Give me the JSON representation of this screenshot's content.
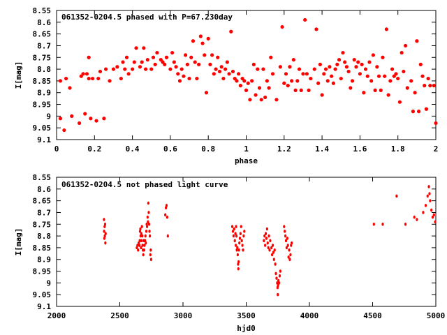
{
  "chart_data": [
    {
      "type": "scatter",
      "title": "061352-0204.5 phased with P=67.230day",
      "xlabel": "phase",
      "ylabel": "I[mag]",
      "xlim": [
        0,
        2
      ],
      "ylim": [
        8.55,
        9.1
      ],
      "y_inverted": true,
      "x_ticks": [
        "0",
        "0.2",
        "0.4",
        "0.6",
        "0.8",
        "1",
        "1.2",
        "1.4",
        "1.6",
        "1.8",
        "2"
      ],
      "y_ticks": [
        "8.55",
        "8.6",
        "8.65",
        "8.7",
        "8.75",
        "8.8",
        "8.85",
        "8.9",
        "8.95",
        "9",
        "9.05",
        "9.1"
      ],
      "grid": false,
      "marker_color": "#ff0000",
      "points": [
        [
          0.02,
          8.85
        ],
        [
          0.02,
          9.01
        ],
        [
          0.04,
          9.06
        ],
        [
          0.05,
          8.84
        ],
        [
          0.07,
          8.88
        ],
        [
          0.08,
          9.0
        ],
        [
          0.12,
          9.03
        ],
        [
          0.13,
          8.83
        ],
        [
          0.14,
          8.82
        ],
        [
          0.15,
          8.99
        ],
        [
          0.16,
          8.82
        ],
        [
          0.17,
          8.75
        ],
        [
          0.17,
          8.84
        ],
        [
          0.18,
          9.01
        ],
        [
          0.19,
          8.84
        ],
        [
          0.21,
          9.02
        ],
        [
          0.22,
          8.84
        ],
        [
          0.23,
          8.81
        ],
        [
          0.25,
          9.01
        ],
        [
          0.26,
          8.8
        ],
        [
          0.28,
          8.85
        ],
        [
          0.3,
          8.8
        ],
        [
          0.32,
          8.79
        ],
        [
          0.34,
          8.84
        ],
        [
          0.35,
          8.77
        ],
        [
          0.36,
          8.8
        ],
        [
          0.37,
          8.75
        ],
        [
          0.38,
          8.82
        ],
        [
          0.4,
          8.8
        ],
        [
          0.41,
          8.77
        ],
        [
          0.42,
          8.71
        ],
        [
          0.44,
          8.79
        ],
        [
          0.45,
          8.77
        ],
        [
          0.46,
          8.71
        ],
        [
          0.47,
          8.8
        ],
        [
          0.48,
          8.76
        ],
        [
          0.5,
          8.8
        ],
        [
          0.51,
          8.75
        ],
        [
          0.52,
          8.78
        ],
        [
          0.53,
          8.73
        ],
        [
          0.55,
          8.76
        ],
        [
          0.56,
          8.77
        ],
        [
          0.57,
          8.78
        ],
        [
          0.58,
          8.75
        ],
        [
          0.6,
          8.8
        ],
        [
          0.61,
          8.73
        ],
        [
          0.62,
          8.77
        ],
        [
          0.63,
          8.79
        ],
        [
          0.64,
          8.82
        ],
        [
          0.65,
          8.85
        ],
        [
          0.66,
          8.8
        ],
        [
          0.67,
          8.83
        ],
        [
          0.68,
          8.74
        ],
        [
          0.69,
          8.78
        ],
        [
          0.7,
          8.84
        ],
        [
          0.71,
          8.75
        ],
        [
          0.72,
          8.68
        ],
        [
          0.73,
          8.77
        ],
        [
          0.74,
          8.84
        ],
        [
          0.75,
          8.78
        ],
        [
          0.76,
          8.66
        ],
        [
          0.77,
          8.69
        ],
        [
          0.78,
          8.74
        ],
        [
          0.79,
          8.9
        ],
        [
          0.8,
          8.67
        ],
        [
          0.81,
          8.78
        ],
        [
          0.82,
          8.74
        ],
        [
          0.83,
          8.82
        ],
        [
          0.84,
          8.8
        ],
        [
          0.85,
          8.75
        ],
        [
          0.86,
          8.81
        ],
        [
          0.87,
          8.79
        ],
        [
          0.88,
          8.84
        ],
        [
          0.89,
          8.8
        ],
        [
          0.9,
          8.77
        ],
        [
          0.91,
          8.82
        ],
        [
          0.92,
          8.64
        ],
        [
          0.93,
          8.81
        ],
        [
          0.94,
          8.84
        ],
        [
          0.95,
          8.85
        ],
        [
          0.96,
          8.82
        ],
        [
          0.97,
          8.87
        ],
        [
          0.98,
          8.84
        ],
        [
          0.99,
          8.85
        ],
        [
          1.0,
          8.89
        ],
        [
          1.01,
          8.86
        ],
        [
          1.02,
          8.93
        ],
        [
          1.03,
          8.85
        ],
        [
          1.04,
          8.78
        ],
        [
          1.05,
          8.91
        ],
        [
          1.06,
          8.8
        ],
        [
          1.07,
          8.88
        ],
        [
          1.08,
          8.93
        ],
        [
          1.09,
          8.8
        ],
        [
          1.1,
          8.92
        ],
        [
          1.11,
          8.85
        ],
        [
          1.12,
          8.88
        ],
        [
          1.13,
          8.75
        ],
        [
          1.14,
          8.82
        ],
        [
          1.16,
          8.93
        ],
        [
          1.18,
          8.79
        ],
        [
          1.19,
          8.62
        ],
        [
          1.2,
          8.86
        ],
        [
          1.21,
          8.82
        ],
        [
          1.22,
          8.87
        ],
        [
          1.23,
          8.79
        ],
        [
          1.24,
          8.85
        ],
        [
          1.25,
          8.76
        ],
        [
          1.26,
          8.89
        ],
        [
          1.27,
          8.85
        ],
        [
          1.28,
          8.8
        ],
        [
          1.29,
          8.89
        ],
        [
          1.3,
          8.82
        ],
        [
          1.31,
          8.59
        ],
        [
          1.32,
          8.82
        ],
        [
          1.33,
          8.89
        ],
        [
          1.34,
          8.84
        ],
        [
          1.36,
          8.8
        ],
        [
          1.37,
          8.63
        ],
        [
          1.38,
          8.86
        ],
        [
          1.39,
          8.78
        ],
        [
          1.4,
          8.91
        ],
        [
          1.41,
          8.82
        ],
        [
          1.42,
          8.8
        ],
        [
          1.43,
          8.85
        ],
        [
          1.44,
          8.79
        ],
        [
          1.45,
          8.83
        ],
        [
          1.46,
          8.86
        ],
        [
          1.47,
          8.8
        ],
        [
          1.48,
          8.78
        ],
        [
          1.49,
          8.76
        ],
        [
          1.5,
          8.84
        ],
        [
          1.51,
          8.73
        ],
        [
          1.52,
          8.77
        ],
        [
          1.53,
          8.79
        ],
        [
          1.54,
          8.81
        ],
        [
          1.55,
          8.88
        ],
        [
          1.56,
          8.85
        ],
        [
          1.57,
          8.76
        ],
        [
          1.58,
          8.79
        ],
        [
          1.59,
          8.77
        ],
        [
          1.6,
          8.82
        ],
        [
          1.61,
          8.78
        ],
        [
          1.62,
          8.9
        ],
        [
          1.63,
          8.8
        ],
        [
          1.64,
          8.83
        ],
        [
          1.65,
          8.77
        ],
        [
          1.66,
          8.85
        ],
        [
          1.67,
          8.74
        ],
        [
          1.68,
          8.89
        ],
        [
          1.69,
          8.79
        ],
        [
          1.7,
          8.83
        ],
        [
          1.71,
          8.89
        ],
        [
          1.72,
          8.75
        ],
        [
          1.73,
          8.83
        ],
        [
          1.74,
          8.63
        ],
        [
          1.75,
          8.91
        ],
        [
          1.76,
          8.85
        ],
        [
          1.77,
          8.8
        ],
        [
          1.78,
          8.83
        ],
        [
          1.79,
          8.82
        ],
        [
          1.8,
          8.84
        ],
        [
          1.81,
          8.94
        ],
        [
          1.82,
          8.73
        ],
        [
          1.83,
          8.81
        ],
        [
          1.84,
          8.7
        ],
        [
          1.85,
          8.88
        ],
        [
          1.87,
          8.85
        ],
        [
          1.88,
          8.98
        ],
        [
          1.89,
          8.9
        ],
        [
          1.9,
          8.68
        ],
        [
          1.91,
          8.98
        ],
        [
          1.92,
          8.78
        ],
        [
          1.93,
          8.83
        ],
        [
          1.94,
          8.87
        ],
        [
          1.95,
          8.97
        ],
        [
          1.96,
          8.84
        ],
        [
          1.97,
          8.87
        ],
        [
          1.99,
          8.87
        ],
        [
          2.0,
          9.03
        ]
      ]
    },
    {
      "type": "scatter",
      "title": "061352-0204.5 not phased light curve",
      "xlabel": "hjd0",
      "ylabel": "I[mag]",
      "xlim": [
        2000,
        5000
      ],
      "ylim": [
        8.55,
        9.1
      ],
      "y_inverted": true,
      "x_ticks": [
        "2000",
        "2500",
        "3000",
        "3500",
        "4000",
        "4500",
        "5000"
      ],
      "y_ticks": [
        "8.55",
        "8.6",
        "8.65",
        "8.7",
        "8.75",
        "8.8",
        "8.85",
        "8.9",
        "8.95",
        "9",
        "9.05",
        "9.1"
      ],
      "grid": false,
      "marker_color": "#ff0000",
      "points": [
        [
          2375,
          8.73
        ],
        [
          2376,
          8.78
        ],
        [
          2378,
          8.81
        ],
        [
          2380,
          8.76
        ],
        [
          2382,
          8.8
        ],
        [
          2384,
          8.75
        ],
        [
          2386,
          8.83
        ],
        [
          2388,
          8.79
        ],
        [
          2635,
          8.85
        ],
        [
          2640,
          8.84
        ],
        [
          2645,
          8.86
        ],
        [
          2650,
          8.83
        ],
        [
          2655,
          8.84
        ],
        [
          2658,
          8.82
        ],
        [
          2660,
          8.78
        ],
        [
          2663,
          8.77
        ],
        [
          2665,
          8.8
        ],
        [
          2668,
          8.85
        ],
        [
          2670,
          8.79
        ],
        [
          2672,
          8.82
        ],
        [
          2675,
          8.76
        ],
        [
          2678,
          8.8
        ],
        [
          2680,
          8.84
        ],
        [
          2683,
          8.86
        ],
        [
          2686,
          8.88
        ],
        [
          2690,
          8.82
        ],
        [
          2693,
          8.86
        ],
        [
          2696,
          8.84
        ],
        [
          2700,
          8.82
        ],
        [
          2703,
          8.8
        ],
        [
          2706,
          8.83
        ],
        [
          2710,
          8.78
        ],
        [
          2713,
          8.75
        ],
        [
          2716,
          8.76
        ],
        [
          2720,
          8.72
        ],
        [
          2723,
          8.74
        ],
        [
          2726,
          8.66
        ],
        [
          2729,
          8.7
        ],
        [
          2732,
          8.75
        ],
        [
          2735,
          8.78
        ],
        [
          2738,
          8.8
        ],
        [
          2742,
          8.88
        ],
        [
          2745,
          8.86
        ],
        [
          2748,
          8.9
        ],
        [
          2860,
          8.71
        ],
        [
          2865,
          8.68
        ],
        [
          2870,
          8.67
        ],
        [
          2875,
          8.72
        ],
        [
          2880,
          8.8
        ],
        [
          3390,
          8.76
        ],
        [
          3395,
          8.78
        ],
        [
          3400,
          8.8
        ],
        [
          3405,
          8.77
        ],
        [
          3410,
          8.82
        ],
        [
          3415,
          8.79
        ],
        [
          3418,
          8.84
        ],
        [
          3420,
          8.76
        ],
        [
          3423,
          8.8
        ],
        [
          3426,
          8.86
        ],
        [
          3430,
          8.85
        ],
        [
          3433,
          8.88
        ],
        [
          3436,
          8.92
        ],
        [
          3438,
          8.94
        ],
        [
          3440,
          8.91
        ],
        [
          3443,
          8.86
        ],
        [
          3446,
          8.83
        ],
        [
          3450,
          8.81
        ],
        [
          3455,
          8.79
        ],
        [
          3460,
          8.76
        ],
        [
          3465,
          8.82
        ],
        [
          3470,
          8.84
        ],
        [
          3475,
          8.86
        ],
        [
          3480,
          8.8
        ],
        [
          3485,
          8.78
        ],
        [
          3640,
          8.82
        ],
        [
          3645,
          8.8
        ],
        [
          3650,
          8.84
        ],
        [
          3655,
          8.79
        ],
        [
          3660,
          8.81
        ],
        [
          3665,
          8.77
        ],
        [
          3670,
          8.83
        ],
        [
          3675,
          8.85
        ],
        [
          3680,
          8.8
        ],
        [
          3685,
          8.86
        ],
        [
          3690,
          8.82
        ],
        [
          3700,
          8.85
        ],
        [
          3705,
          8.88
        ],
        [
          3710,
          8.84
        ],
        [
          3715,
          8.87
        ],
        [
          3720,
          8.9
        ],
        [
          3725,
          8.86
        ],
        [
          3730,
          8.92
        ],
        [
          3735,
          8.96
        ],
        [
          3740,
          8.98
        ],
        [
          3745,
          9.0
        ],
        [
          3748,
          9.02
        ],
        [
          3750,
          9.05
        ],
        [
          3752,
          9.01
        ],
        [
          3755,
          8.99
        ],
        [
          3760,
          9.0
        ],
        [
          3765,
          8.97
        ],
        [
          3770,
          8.95
        ],
        [
          3800,
          8.76
        ],
        [
          3805,
          8.78
        ],
        [
          3810,
          8.8
        ],
        [
          3815,
          8.82
        ],
        [
          3820,
          8.85
        ],
        [
          3825,
          8.81
        ],
        [
          3830,
          8.84
        ],
        [
          3835,
          8.89
        ],
        [
          3840,
          8.86
        ],
        [
          3845,
          8.9
        ],
        [
          3850,
          8.88
        ],
        [
          3855,
          8.84
        ],
        [
          3860,
          8.83
        ],
        [
          4510,
          8.75
        ],
        [
          4580,
          8.75
        ],
        [
          4690,
          8.63
        ],
        [
          4760,
          8.75
        ],
        [
          4830,
          8.72
        ],
        [
          4850,
          8.73
        ],
        [
          4900,
          8.7
        ],
        [
          4920,
          8.67
        ],
        [
          4935,
          8.63
        ],
        [
          4945,
          8.59
        ],
        [
          4950,
          8.62
        ],
        [
          4955,
          8.65
        ],
        [
          4965,
          8.69
        ],
        [
          4975,
          8.72
        ],
        [
          4985,
          8.71
        ],
        [
          4995,
          8.74
        ]
      ]
    }
  ]
}
